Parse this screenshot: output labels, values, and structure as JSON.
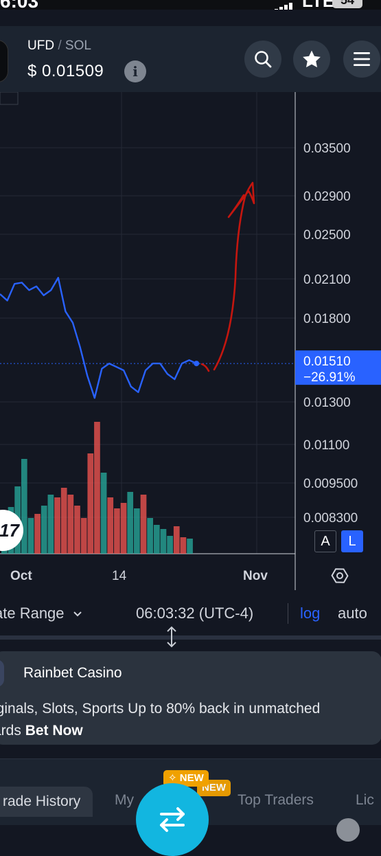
{
  "status_bar": {
    "time": "6:03",
    "network": "LTE",
    "battery": "54"
  },
  "header": {
    "pair_base": "UFD",
    "pair_separator": "/",
    "pair_quote": "SOL",
    "price": "$ 0.01509",
    "info_icon": "i",
    "icons": [
      "search-icon",
      "star-icon",
      "menu-icon"
    ]
  },
  "chart": {
    "y_axis_labels": [
      "0.03500",
      "0.02900",
      "0.02500",
      "0.02100",
      "0.01800",
      "0.01300",
      "0.01100",
      "0.009500",
      "0.008300"
    ],
    "x_axis_labels": [
      "Oct",
      "14",
      "Nov"
    ],
    "current_price_label": "0.01510",
    "current_change_label": "−26.91%",
    "scale_buttons": {
      "auto": "A",
      "log": "L"
    },
    "logo_text": "17",
    "colors": {
      "line": "#2962ff",
      "volume_up": "#26a69a",
      "volume_down": "#ef5350",
      "drawing": "#c4160f",
      "price_tag": "#2962ff"
    }
  },
  "chart_data": {
    "type": "line",
    "scale": "log",
    "x_labels": [
      "Oct",
      "14",
      "Nov"
    ],
    "y_labels": [
      "0.03500",
      "0.02900",
      "0.02500",
      "0.02100",
      "0.01800",
      "0.01300",
      "0.01100",
      "0.009500",
      "0.008300"
    ],
    "series": [
      {
        "values": [
          0.0198,
          0.0193,
          0.0206,
          0.0207,
          0.0201,
          0.0204,
          0.0197,
          0.0201,
          0.0211,
          0.0185,
          0.0177,
          0.0161,
          0.0144,
          0.0132,
          0.0148,
          0.0151,
          0.0149,
          0.0147,
          0.0138,
          0.0135,
          0.0147,
          0.0151,
          0.0151,
          0.0145,
          0.0142,
          0.0151,
          0.0153,
          0.0151
        ]
      }
    ],
    "volume": [
      {
        "value": 0.3,
        "up": true
      },
      {
        "value": 0.34,
        "up": true
      },
      {
        "value": 0.49,
        "up": true
      },
      {
        "value": 0.69,
        "up": true
      },
      {
        "value": 0.26,
        "up": true
      },
      {
        "value": 0.29,
        "up": false
      },
      {
        "value": 0.35,
        "up": true
      },
      {
        "value": 0.43,
        "up": true
      },
      {
        "value": 0.41,
        "up": false
      },
      {
        "value": 0.48,
        "up": false
      },
      {
        "value": 0.43,
        "up": false
      },
      {
        "value": 0.35,
        "up": false
      },
      {
        "value": 0.26,
        "up": false
      },
      {
        "value": 0.73,
        "up": false
      },
      {
        "value": 0.96,
        "up": false
      },
      {
        "value": 0.59,
        "up": true
      },
      {
        "value": 0.41,
        "up": false
      },
      {
        "value": 0.33,
        "up": false
      },
      {
        "value": 0.37,
        "up": false
      },
      {
        "value": 0.45,
        "up": true
      },
      {
        "value": 0.33,
        "up": true
      },
      {
        "value": 0.43,
        "up": false
      },
      {
        "value": 0.26,
        "up": true
      },
      {
        "value": 0.21,
        "up": true
      },
      {
        "value": 0.18,
        "up": true
      },
      {
        "value": 0.13,
        "up": true
      },
      {
        "value": 0.2,
        "up": false
      },
      {
        "value": 0.12,
        "up": false
      },
      {
        "value": 0.11,
        "up": true
      }
    ],
    "last_price": "0.01510",
    "change": "−26.91%",
    "grid": true
  },
  "toolbar": {
    "date_range": "ate Range",
    "clock": "06:03:32 (UTC-4)",
    "log": "log",
    "auto": "auto"
  },
  "ad": {
    "title": "Rainbet Casino",
    "body_line1": "iginals, Slots, Sports Up to 80% back in unmatched",
    "body_line2_prefix": "ards",
    "cta": "Bet Now"
  },
  "bottom_nav": {
    "tabs": [
      "rade History",
      "My",
      "Top Traders",
      "Lic"
    ],
    "new_badge_1": "NEW",
    "new_badge_2": "NEW",
    "new_badge_icon": "✧"
  }
}
